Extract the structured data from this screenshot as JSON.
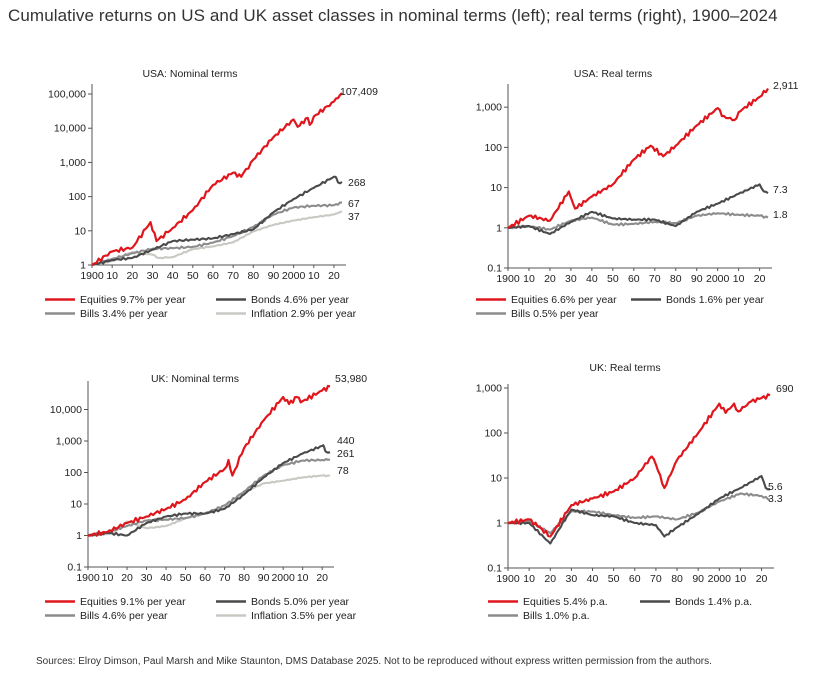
{
  "page": {
    "title": "Cumulative returns on US and UK asset classes in nominal terms (left); real terms (right), 1900–2024",
    "source": "Sources: Elroy Dimson, Paul Marsh and Mike Staunton, DMS Database 2025. Not to be reproduced without express written permission from the authors."
  },
  "colors": {
    "equities": "#e0161d",
    "bonds": "#4a4a4a",
    "bills": "#8c8c8c",
    "inflation": "#c9c9c4"
  },
  "chart_data": [
    {
      "type": "line",
      "title": "USA: Nominal terms",
      "yscale": "log",
      "ylim": [
        1,
        150000
      ],
      "xlim": [
        1900,
        2024
      ],
      "yticks": [
        1,
        10,
        100,
        1000,
        10000,
        100000
      ],
      "ytick_labels": [
        "1",
        "10",
        "100",
        "1,000",
        "10,000",
        "100,000"
      ],
      "xtick_labels": [
        "1900",
        "10",
        "20",
        "30",
        "40",
        "50",
        "60",
        "70",
        "80",
        "90",
        "2000",
        "10",
        "20"
      ],
      "series": [
        {
          "name": "Equities 9.7% per year",
          "key": "equities",
          "end_label": "107,409",
          "x": [
            1900,
            1910,
            1920,
            1929,
            1932,
            1940,
            1950,
            1960,
            1970,
            1974,
            1980,
            1990,
            2000,
            2002,
            2007,
            2008,
            2010,
            2020,
            2024
          ],
          "y": [
            1,
            2.5,
            3.2,
            18,
            5,
            12,
            40,
            220,
            500,
            380,
            1200,
            5500,
            18000,
            11000,
            20000,
            12500,
            22000,
            60000,
            107409
          ]
        },
        {
          "name": "Bonds 4.6% per year",
          "key": "bonds",
          "end_label": "268",
          "x": [
            1900,
            1910,
            1920,
            1930,
            1940,
            1950,
            1960,
            1970,
            1980,
            1990,
            2000,
            2010,
            2020,
            2021,
            2022,
            2024
          ],
          "y": [
            1,
            1.4,
            1.6,
            2.8,
            5,
            5.5,
            6,
            8,
            11,
            35,
            85,
            180,
            380,
            370,
            260,
            268
          ]
        },
        {
          "name": "Bills 3.4% per year",
          "key": "bills",
          "end_label": "67",
          "x": [
            1900,
            1910,
            1920,
            1930,
            1940,
            1950,
            1960,
            1970,
            1980,
            1990,
            2000,
            2010,
            2020,
            2024
          ],
          "y": [
            1,
            1.5,
            2.2,
            3,
            3.1,
            3.4,
            4.5,
            7,
            13,
            30,
            48,
            54,
            56,
            67
          ]
        },
        {
          "name": "Inflation 2.9% per year",
          "key": "inflation",
          "end_label": "37",
          "x": [
            1900,
            1910,
            1917,
            1920,
            1930,
            1933,
            1940,
            1950,
            1960,
            1970,
            1980,
            1990,
            2000,
            2010,
            2020,
            2024
          ],
          "y": [
            1,
            1.3,
            2,
            2.4,
            2,
            1.6,
            1.7,
            2.9,
            3.5,
            4.6,
            9.6,
            15,
            20,
            25,
            30,
            37
          ]
        }
      ]
    },
    {
      "type": "line",
      "title": "USA: Real terms",
      "yscale": "log",
      "ylim": [
        0.1,
        3000
      ],
      "xlim": [
        1900,
        2024
      ],
      "yticks": [
        0.1,
        1,
        10,
        100,
        1000
      ],
      "ytick_labels": [
        "0.1",
        "1",
        "10",
        "100",
        "1,000"
      ],
      "xtick_labels": [
        "1900",
        "10",
        "20",
        "30",
        "40",
        "50",
        "60",
        "70",
        "80",
        "90",
        "2000",
        "10",
        "20"
      ],
      "series": [
        {
          "name": "Equities 6.6% per year",
          "key": "equities",
          "end_label": "2,911",
          "x": [
            1900,
            1910,
            1920,
            1929,
            1932,
            1940,
            1950,
            1960,
            1968,
            1974,
            1980,
            1990,
            2000,
            2002,
            2008,
            2010,
            2020,
            2024
          ],
          "y": [
            1,
            2,
            1.5,
            8,
            3,
            6,
            12,
            50,
            110,
            60,
            110,
            350,
            950,
            600,
            480,
            750,
            1800,
            2911
          ]
        },
        {
          "name": "Bonds 1.6% per year",
          "key": "bonds",
          "end_label": "7.3",
          "x": [
            1900,
            1910,
            1920,
            1930,
            1940,
            1950,
            1960,
            1970,
            1980,
            1990,
            2000,
            2010,
            2020,
            2022,
            2024
          ],
          "y": [
            1,
            1.1,
            0.7,
            1.4,
            2.5,
            1.7,
            1.6,
            1.6,
            1.1,
            2.5,
            4,
            7,
            12,
            8,
            7.3
          ]
        },
        {
          "name": "Bills 0.5% per year",
          "key": "bills",
          "end_label": "1.8",
          "x": [
            1900,
            1910,
            1920,
            1930,
            1940,
            1950,
            1960,
            1970,
            1980,
            1990,
            2000,
            2010,
            2020,
            2024
          ],
          "y": [
            1,
            1.1,
            0.9,
            1.5,
            1.8,
            1.2,
            1.25,
            1.4,
            1.3,
            2,
            2.3,
            2.1,
            2,
            1.8
          ]
        }
      ]
    },
    {
      "type": "line",
      "title": "UK: Nominal terms",
      "yscale": "log",
      "ylim": [
        0.1,
        60000
      ],
      "xlim": [
        1900,
        2024
      ],
      "yticks": [
        0.1,
        1,
        10,
        100,
        1000,
        10000
      ],
      "ytick_labels": [
        "0.1",
        "1",
        "10",
        "100",
        "1,000",
        "10,000"
      ],
      "xtick_labels": [
        "1900",
        "10",
        "20",
        "30",
        "40",
        "50",
        "60",
        "70",
        "80",
        "90",
        "2000",
        "10",
        "20"
      ],
      "series": [
        {
          "name": "Equities 9.1% per year",
          "key": "equities",
          "end_label": "53,980",
          "x": [
            1900,
            1910,
            1920,
            1930,
            1940,
            1950,
            1960,
            1970,
            1972,
            1974,
            1980,
            1990,
            2000,
            2003,
            2007,
            2009,
            2020,
            2024
          ],
          "y": [
            1,
            1.3,
            2.5,
            4,
            7,
            14,
            50,
            130,
            250,
            80,
            600,
            4500,
            25000,
            15000,
            25000,
            17000,
            40000,
            53980
          ]
        },
        {
          "name": "Bonds 5.0% per year",
          "key": "bonds",
          "end_label": "440",
          "x": [
            1900,
            1910,
            1920,
            1930,
            1940,
            1950,
            1960,
            1970,
            1980,
            1990,
            2000,
            2010,
            2020,
            2021,
            2022,
            2024
          ],
          "y": [
            1,
            1.2,
            1,
            2.5,
            4,
            5,
            5,
            7,
            20,
            70,
            200,
            400,
            700,
            650,
            450,
            440
          ]
        },
        {
          "name": "Bills 4.6% per year",
          "key": "bills",
          "end_label": "261",
          "x": [
            1900,
            1910,
            1920,
            1930,
            1940,
            1950,
            1960,
            1970,
            1980,
            1990,
            2000,
            2010,
            2020,
            2024
          ],
          "y": [
            1,
            1.3,
            2,
            3,
            3.2,
            3.6,
            5,
            9,
            25,
            80,
            170,
            240,
            250,
            261
          ]
        },
        {
          "name": "Inflation 3.5% per year",
          "key": "inflation",
          "end_label": "78",
          "x": [
            1900,
            1910,
            1915,
            1920,
            1930,
            1940,
            1950,
            1960,
            1970,
            1980,
            1990,
            2000,
            2010,
            2020,
            2024
          ],
          "y": [
            1,
            1.1,
            1.5,
            2.8,
            1.7,
            2,
            3.5,
            5,
            7.5,
            24,
            45,
            55,
            70,
            80,
            78
          ]
        }
      ]
    },
    {
      "type": "line",
      "title": "UK: Real terms",
      "yscale": "log",
      "ylim": [
        0.1,
        1000
      ],
      "xlim": [
        1900,
        2024
      ],
      "yticks": [
        0.1,
        1,
        10,
        100,
        1000
      ],
      "ytick_labels": [
        "0.1",
        "1",
        "10",
        "100",
        "1,000"
      ],
      "xtick_labels": [
        "1900",
        "10",
        "20",
        "30",
        "40",
        "50",
        "60",
        "70",
        "80",
        "90",
        "2000",
        "10",
        "20"
      ],
      "series": [
        {
          "name": "Equities 5.4% p.a.",
          "key": "equities",
          "end_label": "690",
          "x": [
            1900,
            1910,
            1915,
            1920,
            1930,
            1940,
            1950,
            1960,
            1968,
            1970,
            1974,
            1980,
            1990,
            2000,
            2003,
            2007,
            2009,
            2015,
            2020,
            2024
          ],
          "y": [
            1,
            1.2,
            0.8,
            0.5,
            2.5,
            3.5,
            5,
            10,
            30,
            20,
            6,
            25,
            100,
            450,
            280,
            450,
            300,
            500,
            600,
            690
          ]
        },
        {
          "name": "Bonds 1.4% p.a.",
          "key": "bonds",
          "end_label": "5.6",
          "x": [
            1900,
            1910,
            1920,
            1930,
            1940,
            1950,
            1960,
            1970,
            1974,
            1980,
            1990,
            2000,
            2010,
            2020,
            2022,
            2024
          ],
          "y": [
            1,
            1,
            0.35,
            2,
            1.5,
            1.4,
            1,
            0.9,
            0.5,
            0.8,
            1.6,
            3.5,
            6,
            11,
            6,
            5.6
          ]
        },
        {
          "name": "Bills 1.0% p.a.",
          "key": "bills",
          "end_label": "3.3",
          "x": [
            1900,
            1910,
            1920,
            1930,
            1940,
            1950,
            1960,
            1970,
            1980,
            1990,
            2000,
            2010,
            2020,
            2024
          ],
          "y": [
            1,
            1.1,
            0.6,
            1.8,
            1.8,
            1.5,
            1.3,
            1.4,
            1.2,
            1.7,
            3,
            4.5,
            4,
            3.3
          ]
        }
      ]
    }
  ]
}
